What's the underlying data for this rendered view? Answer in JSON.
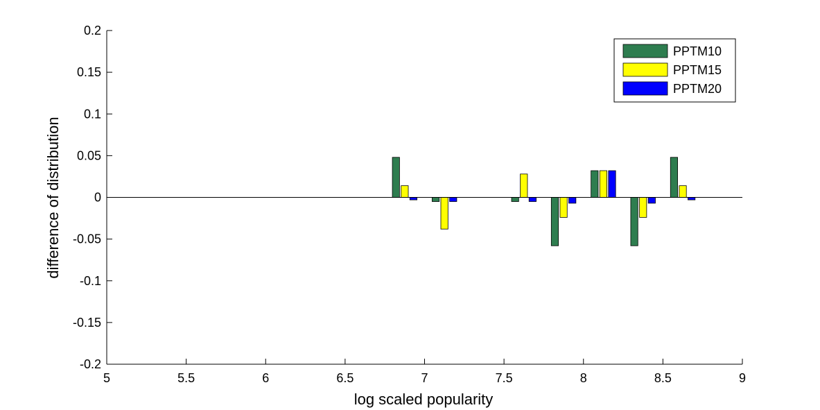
{
  "chart_data": {
    "type": "bar",
    "xlabel": "log scaled popularity",
    "ylabel": "difference of distribution",
    "xlim": [
      5,
      9
    ],
    "ylim": [
      -0.2,
      0.2
    ],
    "xticks": [
      "5",
      "5.5",
      "6",
      "6.5",
      "7",
      "7.5",
      "8",
      "8.5",
      "9"
    ],
    "yticks": [
      "-0.2",
      "-0.15",
      "-0.1",
      "-0.05",
      "0",
      "0.05",
      "0.1",
      "0.15",
      "0.2"
    ],
    "grid": false,
    "legend_position": "top-right",
    "x": [
      6.875,
      7.125,
      7.625,
      7.875,
      8.125,
      8.375,
      8.625
    ],
    "series": [
      {
        "name": "PPTM10",
        "color": "#2e7d4f",
        "values": [
          0.048,
          -0.005,
          -0.005,
          -0.058,
          0.032,
          -0.058,
          0.048
        ]
      },
      {
        "name": "PPTM15",
        "color": "#ffff00",
        "values": [
          0.014,
          -0.038,
          0.028,
          -0.024,
          0.032,
          -0.024,
          0.014
        ]
      },
      {
        "name": "PPTM20",
        "color": "#0000ff",
        "values": [
          -0.003,
          -0.005,
          -0.005,
          -0.007,
          0.032,
          -0.007,
          -0.003
        ]
      }
    ]
  }
}
